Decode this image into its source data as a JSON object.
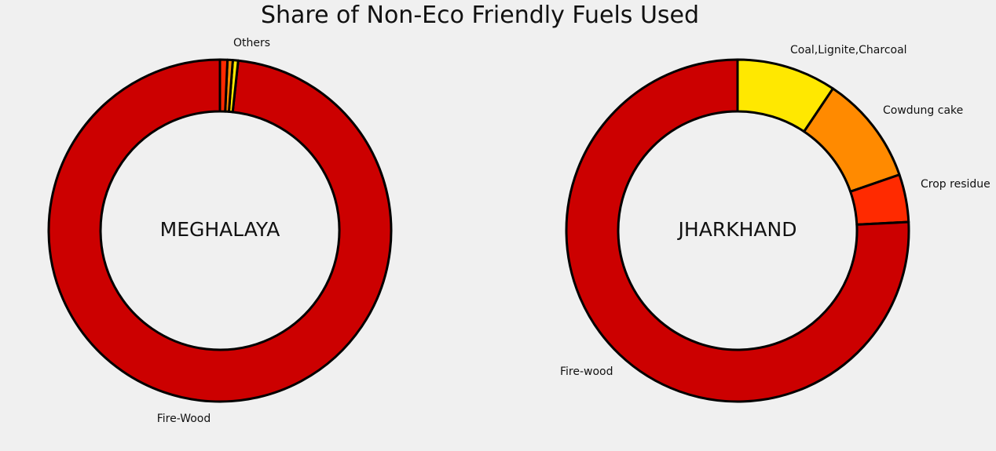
{
  "chart_data": [
    {
      "type": "pie",
      "subtype": "donut",
      "title": "Share of Non-Eco Friendly Fuels Used",
      "center_label": "MEGHALAYA",
      "slices": [
        {
          "name": "Fire-Wood",
          "value": 98.3,
          "color": "#cc0000",
          "label": "Fire-Wood"
        },
        {
          "name": "",
          "value": 0.5,
          "color": "#ffe800",
          "label": ""
        },
        {
          "name": "",
          "value": 0.5,
          "color": "#ff8a00",
          "label": ""
        },
        {
          "name": "Others",
          "value": 0.7,
          "color": "#ff2a00",
          "label": "Others"
        }
      ],
      "legend": "none"
    },
    {
      "type": "pie",
      "subtype": "donut",
      "center_label": "JHARKHAND",
      "slices": [
        {
          "name": "Coal,Lignite,Charcoal",
          "value": 9.4,
          "color": "#ffe800",
          "label": "Coal,Lignite,Charcoal"
        },
        {
          "name": "Cowdung cake",
          "value": 10.3,
          "color": "#ff8a00",
          "label": "Cowdung cake"
        },
        {
          "name": "Crop residue",
          "value": 4.5,
          "color": "#ff2a00",
          "label": "Crop residue"
        },
        {
          "name": "Fire-wood",
          "value": 75.8,
          "color": "#cc0000",
          "label": "Fire-wood"
        }
      ],
      "legend": "none"
    }
  ],
  "style": {
    "background": "#f0f0f0",
    "edge_color": "#000000"
  }
}
